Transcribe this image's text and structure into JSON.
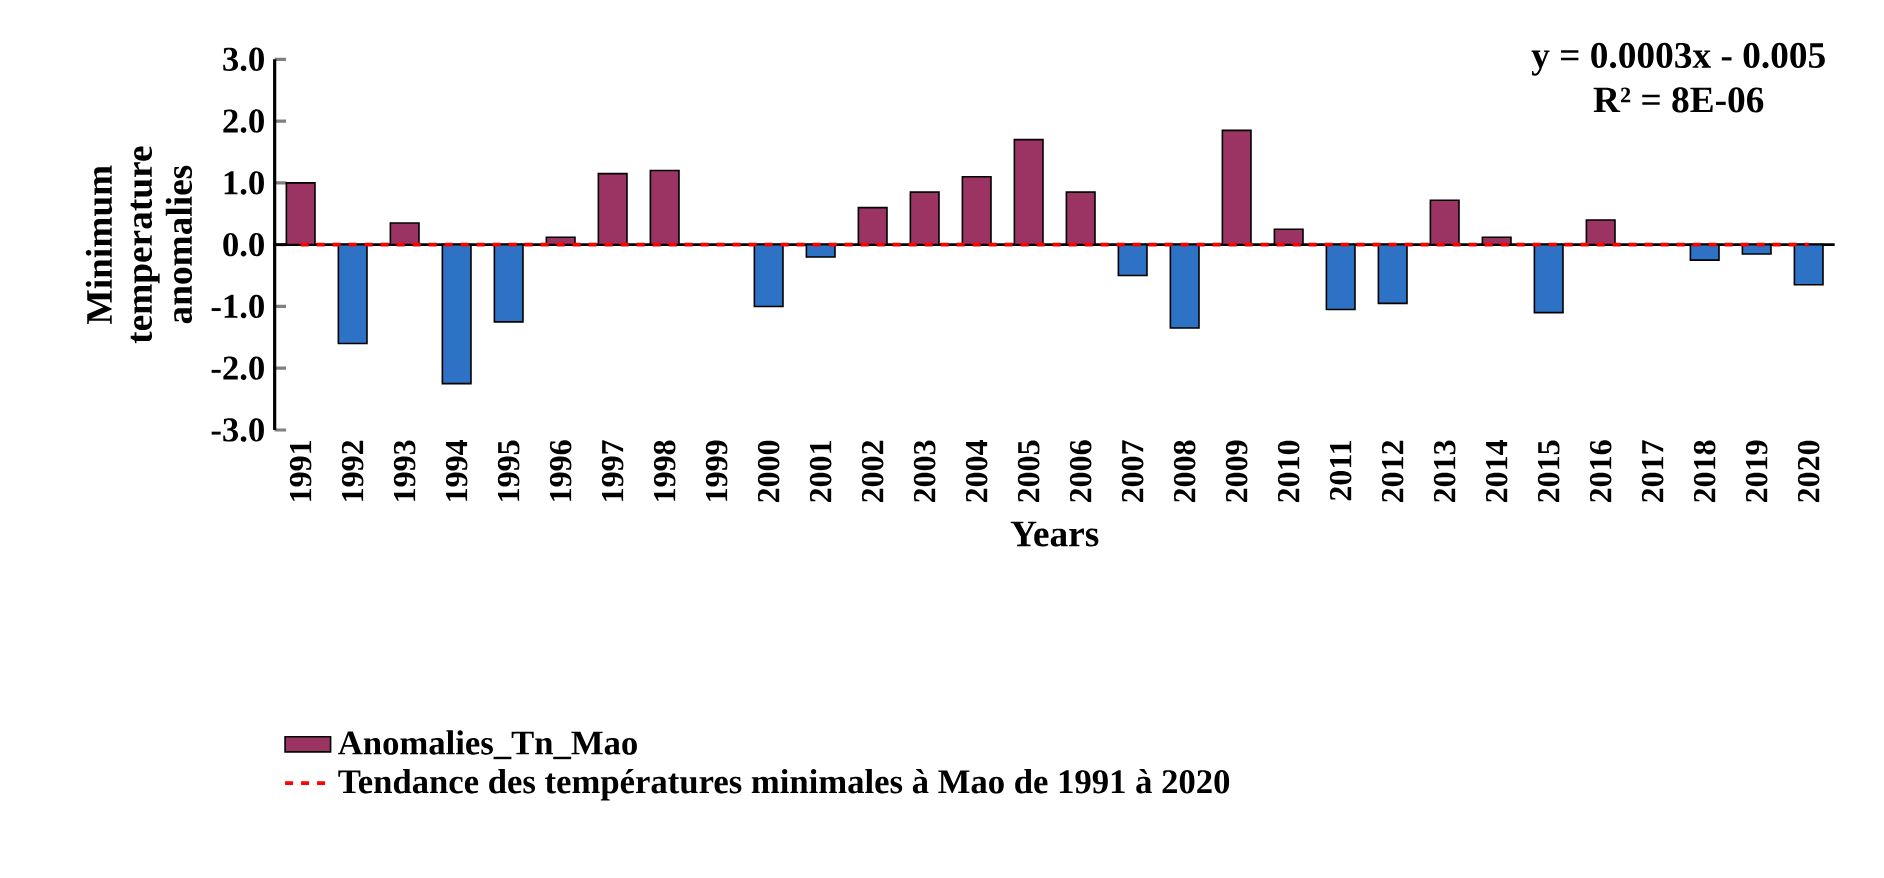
{
  "chart_data": {
    "type": "bar",
    "xlabel": "Years",
    "ylabel": "Minimum temperature anomalies",
    "categories": [
      "1991",
      "1992",
      "1993",
      "1994",
      "1995",
      "1996",
      "1997",
      "1998",
      "1999",
      "2000",
      "2001",
      "2002",
      "2003",
      "2004",
      "2005",
      "2006",
      "2007",
      "2008",
      "2009",
      "2010",
      "2011",
      "2012",
      "2013",
      "2014",
      "2015",
      "2016",
      "2017",
      "2018",
      "2019",
      "2020"
    ],
    "series": [
      {
        "name": "Anomalies_Tn_Mao",
        "color": "#9b3462",
        "values": [
          1.0,
          -1.6,
          0.35,
          -2.25,
          -1.25,
          0.12,
          1.15,
          1.2,
          null,
          -1.0,
          -0.2,
          0.6,
          0.85,
          1.1,
          1.7,
          0.85,
          -0.5,
          -1.35,
          1.85,
          0.25,
          -1.05,
          -0.95,
          0.72,
          0.12,
          -1.1,
          0.4,
          null,
          -0.25,
          -0.15,
          -0.65
        ],
        "colors": [
          "#9b3462",
          "#2e72c6",
          "#9b3462",
          "#2e72c6",
          "#2e72c6",
          "#9b3462",
          "#9b3462",
          "#9b3462",
          "#9b3462",
          "#2e72c6",
          "#2e72c6",
          "#9b3462",
          "#9b3462",
          "#9b3462",
          "#9b3462",
          "#9b3462",
          "#2e72c6",
          "#2e72c6",
          "#9b3462",
          "#9b3462",
          "#2e72c6",
          "#2e72c6",
          "#9b3462",
          "#9b3462",
          "#2e72c6",
          "#9b3462",
          "#9b3462",
          "#2e72c6",
          "#2e72c6",
          "#2e72c6"
        ]
      },
      {
        "name": "Tendance des températures minimales à Mao de 1991 à 2020",
        "type": "line",
        "color": "#ff0000",
        "line_style": "dashed",
        "marker": "none",
        "values": [
          0.0,
          0.0,
          0.0,
          0.0,
          0.0,
          0.0,
          0.0,
          0.0,
          0.0,
          0.0,
          0.0,
          0.0,
          0.0,
          0.0,
          0.0,
          0.0,
          0.0,
          0.0,
          0.0,
          0.0,
          0.0,
          0.0,
          0.0,
          0.0,
          0.0,
          0.0,
          0.0,
          0.0,
          0.0,
          0.0
        ]
      }
    ],
    "ylim": [
      -3,
      3
    ],
    "yticks": [
      {
        "value": -3,
        "label": "-3.0"
      },
      {
        "value": -2,
        "label": "-2.0"
      },
      {
        "value": -1,
        "label": "-1.0"
      },
      {
        "value": 0,
        "label": "0.0"
      },
      {
        "value": 1,
        "label": "1.0"
      },
      {
        "value": 2,
        "label": "2.0"
      },
      {
        "value": 3,
        "label": "3.0"
      }
    ],
    "annotations": [
      "y = 0.0003x - 0.005",
      "R² = 8E-06"
    ],
    "ref_lines": [
      {
        "axis": "y",
        "value": 0,
        "color": "#000000"
      }
    ],
    "legend": "bottom"
  }
}
